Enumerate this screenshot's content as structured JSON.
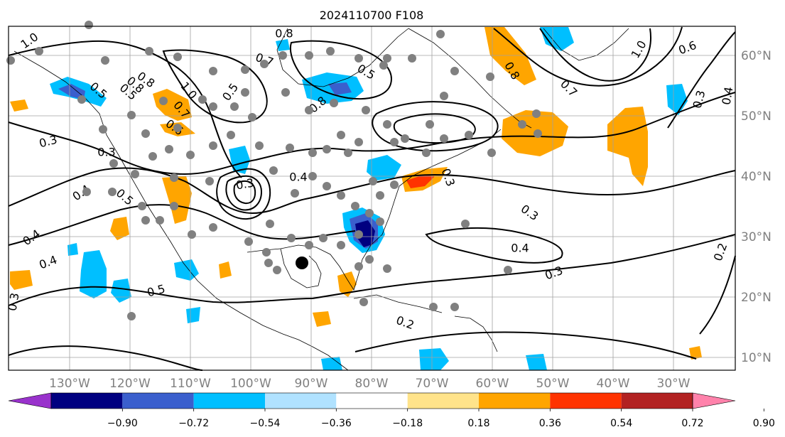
{
  "title": "2024110700 F108",
  "lat_labels": [
    "60°N",
    "50°N",
    "40°N",
    "30°N",
    "20°N",
    "10°N"
  ],
  "lon_labels": [
    "130°W",
    "120°W",
    "110°W",
    "100°W",
    "90°W",
    "80°W",
    "70°W",
    "60°W",
    "50°W",
    "40°W",
    "30°W"
  ],
  "colorbar": {
    "colors": [
      "#9932cc",
      "#000080",
      "#3a5fcd",
      "#00bfff",
      "#b0e2ff",
      "#ffffff",
      "#ffe38a",
      "#ffa500",
      "#ff3300",
      "#b22222",
      "#ff82ab"
    ],
    "tick_labels": [
      "−0.90",
      "−0.72",
      "−0.54",
      "−0.36",
      "−0.18",
      "0.18",
      "0.36",
      "0.54",
      "0.72",
      "0.90"
    ]
  },
  "contour_labels": [
    "1.0",
    "0.8",
    "0.5",
    "0.3",
    "0.3",
    "0.4",
    "0.5",
    "0.4",
    "0.4",
    "0.5",
    "0.3",
    "0.8",
    "0.7",
    "0.5",
    "0.7",
    "0.8",
    "1.0",
    "0.6",
    "0.5",
    "0.8",
    "0.3",
    "0.4",
    "0.3",
    "0.2",
    "0.4",
    "0.5",
    "0.8",
    "0.7",
    "1.0",
    "0.6",
    "0.3",
    "0.4",
    "0.2",
    "0.3",
    "0.3"
  ],
  "colors": {
    "frame": "#000000",
    "grid": "#a0a0a0",
    "coast": "#000000",
    "station": "#808080",
    "target": "#000000"
  }
}
